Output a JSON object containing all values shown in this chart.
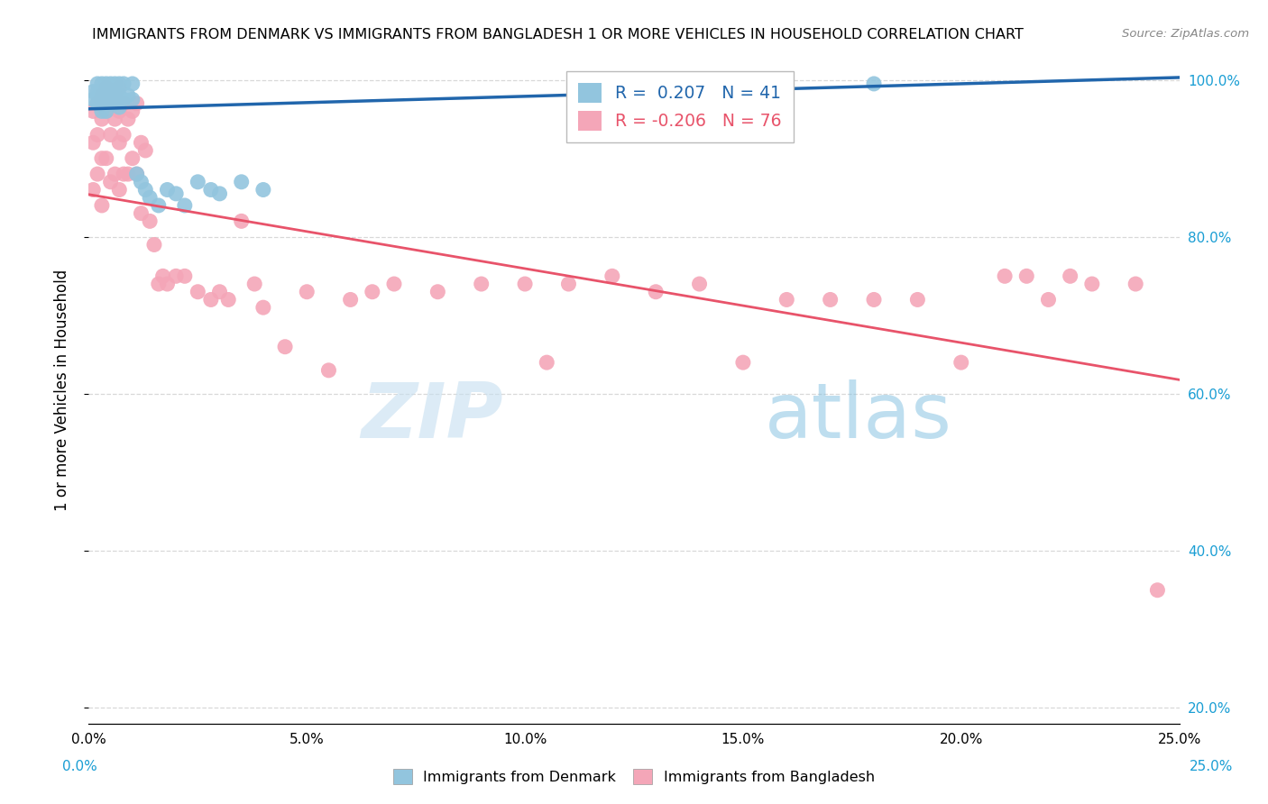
{
  "title": "IMMIGRANTS FROM DENMARK VS IMMIGRANTS FROM BANGLADESH 1 OR MORE VEHICLES IN HOUSEHOLD CORRELATION CHART",
  "source": "Source: ZipAtlas.com",
  "ylabel": "1 or more Vehicles in Household",
  "legend_denmark": "Immigrants from Denmark",
  "legend_bangladesh": "Immigrants from Bangladesh",
  "R_denmark": 0.207,
  "N_denmark": 41,
  "R_bangladesh": -0.206,
  "N_bangladesh": 76,
  "color_denmark": "#92c5de",
  "color_bangladesh": "#f4a6b8",
  "color_denmark_line": "#2166ac",
  "color_bangladesh_line": "#e8536a",
  "color_right_axis": "#1a9ed4",
  "watermark_zip": "ZIP",
  "watermark_atlas": "atlas",
  "denmark_x": [
    0.001,
    0.001,
    0.002,
    0.002,
    0.002,
    0.003,
    0.003,
    0.003,
    0.003,
    0.004,
    0.004,
    0.004,
    0.004,
    0.005,
    0.005,
    0.005,
    0.006,
    0.006,
    0.006,
    0.007,
    0.007,
    0.007,
    0.008,
    0.008,
    0.009,
    0.01,
    0.01,
    0.011,
    0.012,
    0.013,
    0.014,
    0.016,
    0.018,
    0.02,
    0.022,
    0.025,
    0.028,
    0.03,
    0.035,
    0.04,
    0.18
  ],
  "denmark_y": [
    0.985,
    0.975,
    0.995,
    0.985,
    0.97,
    0.995,
    0.985,
    0.975,
    0.96,
    0.995,
    0.985,
    0.975,
    0.96,
    0.995,
    0.985,
    0.97,
    0.995,
    0.98,
    0.97,
    0.995,
    0.98,
    0.965,
    0.995,
    0.975,
    0.98,
    0.995,
    0.975,
    0.88,
    0.87,
    0.86,
    0.85,
    0.84,
    0.86,
    0.855,
    0.84,
    0.87,
    0.86,
    0.855,
    0.87,
    0.86,
    0.995
  ],
  "bangladesh_x": [
    0.001,
    0.001,
    0.001,
    0.002,
    0.002,
    0.002,
    0.003,
    0.003,
    0.003,
    0.003,
    0.004,
    0.004,
    0.004,
    0.005,
    0.005,
    0.005,
    0.006,
    0.006,
    0.006,
    0.007,
    0.007,
    0.007,
    0.007,
    0.008,
    0.008,
    0.008,
    0.009,
    0.009,
    0.01,
    0.01,
    0.011,
    0.011,
    0.012,
    0.012,
    0.013,
    0.014,
    0.015,
    0.016,
    0.017,
    0.018,
    0.02,
    0.022,
    0.025,
    0.028,
    0.03,
    0.032,
    0.035,
    0.038,
    0.04,
    0.045,
    0.05,
    0.055,
    0.06,
    0.065,
    0.07,
    0.08,
    0.09,
    0.1,
    0.105,
    0.11,
    0.12,
    0.13,
    0.14,
    0.15,
    0.16,
    0.17,
    0.18,
    0.19,
    0.2,
    0.21,
    0.215,
    0.22,
    0.225,
    0.23,
    0.24,
    0.245
  ],
  "bangladesh_y": [
    0.96,
    0.92,
    0.86,
    0.97,
    0.93,
    0.88,
    0.98,
    0.95,
    0.9,
    0.84,
    0.99,
    0.96,
    0.9,
    0.97,
    0.93,
    0.87,
    0.98,
    0.95,
    0.88,
    0.99,
    0.96,
    0.92,
    0.86,
    0.97,
    0.93,
    0.88,
    0.95,
    0.88,
    0.96,
    0.9,
    0.97,
    0.88,
    0.92,
    0.83,
    0.91,
    0.82,
    0.79,
    0.74,
    0.75,
    0.74,
    0.75,
    0.75,
    0.73,
    0.72,
    0.73,
    0.72,
    0.82,
    0.74,
    0.71,
    0.66,
    0.73,
    0.63,
    0.72,
    0.73,
    0.74,
    0.73,
    0.74,
    0.74,
    0.64,
    0.74,
    0.75,
    0.73,
    0.74,
    0.64,
    0.72,
    0.72,
    0.72,
    0.72,
    0.64,
    0.75,
    0.75,
    0.72,
    0.75,
    0.74,
    0.74,
    0.35
  ],
  "xlim": [
    0.0,
    0.25
  ],
  "ylim": [
    0.18,
    1.03
  ],
  "yticks": [
    0.2,
    0.4,
    0.6,
    0.8,
    1.0
  ],
  "ytick_labels_right": [
    "20.0%",
    "40.0%",
    "60.0%",
    "80.0%",
    "100.0%"
  ],
  "xticks": [
    0.0,
    0.05,
    0.1,
    0.15,
    0.2,
    0.25
  ],
  "grid_color": "#d8d8d8",
  "background_color": "#ffffff",
  "dk_line_x": [
    0.0,
    0.25
  ],
  "dk_line_y": [
    0.963,
    1.003
  ],
  "bd_line_x": [
    0.0,
    0.25
  ],
  "bd_line_y": [
    0.854,
    0.618
  ]
}
